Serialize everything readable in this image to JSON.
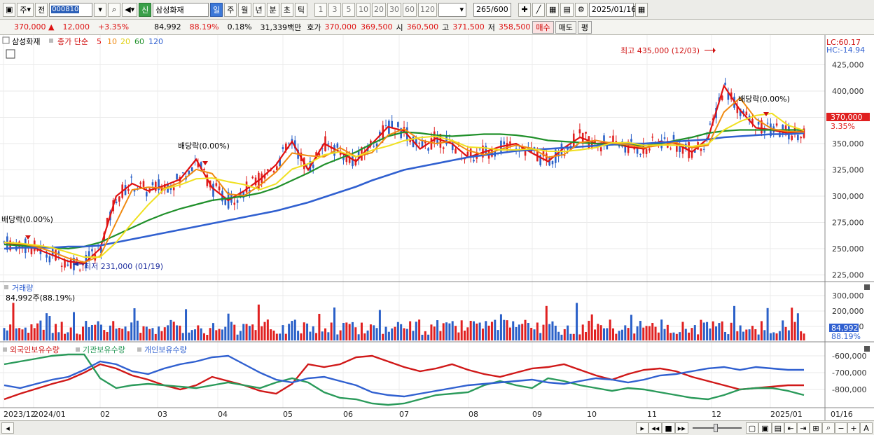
{
  "toolbar": {
    "period_type": "주",
    "prev_label": "전",
    "code": "000810",
    "sin_label": "신",
    "stock_name": "삼성화재",
    "period_tabs": [
      "일",
      "주",
      "월",
      "년",
      "분",
      "초",
      "틱"
    ],
    "active_period": "일",
    "intervals": [
      "1",
      "3",
      "5",
      "10",
      "20",
      "30",
      "60",
      "120"
    ],
    "count": "265",
    "count_total": "/600",
    "date": "2025/01/16"
  },
  "quote": {
    "price": "370,000",
    "change": "12,000",
    "change_pct": "+3.35%",
    "volume": "84,992",
    "vol_ratio": "88.19%",
    "turnover_pct": "0.18%",
    "amount": "31,339백만",
    "bid_label": "호가",
    "ask": "370,000",
    "bid": "369,500",
    "open_label": "시",
    "open": "360,500",
    "high_label": "고",
    "high": "371,500",
    "low_label": "저",
    "low": "358,500",
    "buy_label": "매수",
    "sell_label": "매도",
    "avg_label": "평"
  },
  "price_pane": {
    "title": "삼성화재",
    "ma_label": "종가 단순",
    "ma_periods": [
      "5",
      "10",
      "20",
      "60",
      "120"
    ],
    "ma_colors": [
      "#e01010",
      "#f08a10",
      "#f0e020",
      "#20902a",
      "#3060d0"
    ],
    "lc": "LC:60.17",
    "hc": "HC:-14.94",
    "y_ticks": [
      "425,000",
      "400,000",
      "375,000",
      "350,000",
      "325,000",
      "300,000",
      "275,000",
      "250,000",
      "225,000"
    ],
    "current_price_tag": "370,000",
    "current_pct_tag": "3.35%",
    "annotations": {
      "high": "최고 435,000 (12/03)",
      "low": "최저 231,000 (01/19)",
      "div1": "배당락(0.00%)",
      "div2": "배당락(0.00%)",
      "div3": "배당락(0.00%)"
    }
  },
  "volume_pane": {
    "title": "거래량",
    "subtitle": "84,992주(88.19%)",
    "y_ticks": [
      "300,000",
      "200,000",
      "100,000"
    ],
    "tag_value": "84,992",
    "tag_pct": "88.19%"
  },
  "holdings_pane": {
    "legend": [
      "외국인보유수량",
      "기관보유수량",
      "개인보유수량"
    ],
    "colors": [
      "#d01818",
      "#2a9a5a",
      "#3060d0"
    ],
    "y_ticks": [
      "-600,000",
      "-700,000",
      "-800,000"
    ]
  },
  "x_axis": {
    "labels": [
      "2023/12",
      "2024/01",
      "02",
      "03",
      "04",
      "05",
      "06",
      "07",
      "08",
      "09",
      "10",
      "11",
      "12",
      "2025/01"
    ],
    "right_label": "01/16"
  },
  "chart_data": {
    "type": "line",
    "series": [
      {
        "name": "종가 단순 5",
        "values": [
          256000,
          254000,
          250000,
          244000,
          238000,
          236000,
          250000,
          300000,
          312000,
          305000,
          310000,
          316000,
          335000,
          308000,
          296000,
          305000,
          316000,
          330000,
          352000,
          325000,
          350000,
          342000,
          333000,
          350000,
          366000,
          362000,
          345000,
          355000,
          350000,
          337000,
          342000,
          347000,
          350000,
          341000,
          333000,
          346000,
          356000,
          350000,
          351000,
          347000,
          345000,
          352000,
          350000,
          342000,
          355000,
          405000,
          382000,
          365000,
          363000,
          360000,
          362000
        ]
      },
      {
        "name": "종가 단순 60",
        "values": [
          254000,
          253000,
          252000,
          251000,
          250000,
          252000,
          256000,
          263000,
          270000,
          277000,
          283000,
          288000,
          292000,
          296000,
          298000,
          300000,
          303000,
          308000,
          315000,
          322000,
          330000,
          336000,
          342000,
          350000,
          357000,
          361000,
          360000,
          358000,
          357000,
          358000,
          359000,
          359000,
          358000,
          356000,
          353000,
          352000,
          351000,
          350000,
          349000,
          349000,
          348000,
          350000,
          353000,
          356000,
          360000,
          362000,
          363000,
          363000,
          363000,
          363000,
          363000
        ]
      },
      {
        "name": "종가 단순 120",
        "values": [
          250000,
          251000,
          251000,
          251000,
          252000,
          252000,
          253000,
          256000,
          259000,
          262000,
          265000,
          268000,
          271000,
          274000,
          277000,
          280000,
          283000,
          286000,
          290000,
          294000,
          299000,
          304000,
          309000,
          315000,
          320000,
          325000,
          328000,
          331000,
          334000,
          337000,
          339000,
          341000,
          343000,
          344000,
          345000,
          346000,
          347000,
          348000,
          349000,
          350000,
          350000,
          351000,
          352000,
          353000,
          354000,
          356000,
          357000,
          358000,
          359000,
          359000,
          360000
        ]
      }
    ],
    "ylim": [
      220000,
      440000
    ]
  }
}
